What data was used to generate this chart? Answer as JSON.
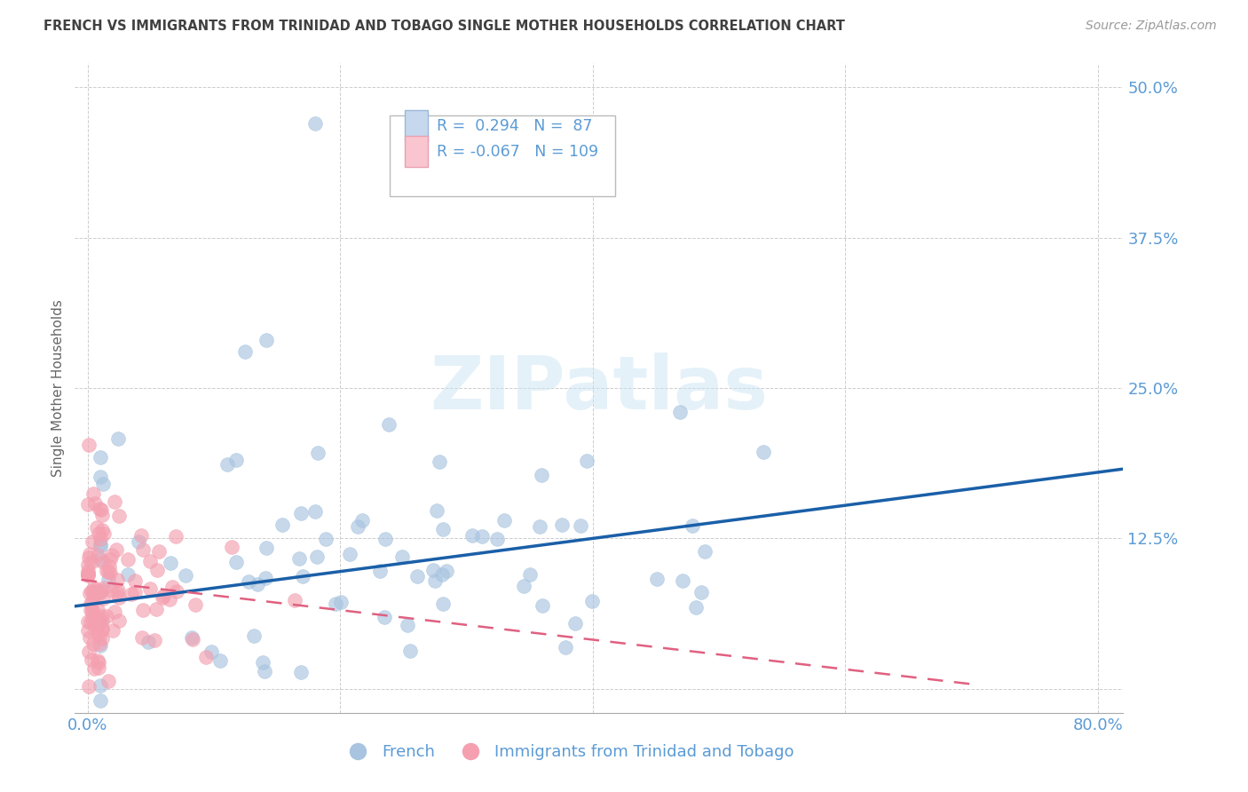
{
  "title": "FRENCH VS IMMIGRANTS FROM TRINIDAD AND TOBAGO SINGLE MOTHER HOUSEHOLDS CORRELATION CHART",
  "source": "Source: ZipAtlas.com",
  "ylabel": "Single Mother Households",
  "watermark": "ZIPatlas",
  "blue_R": 0.294,
  "blue_N": 87,
  "pink_R": -0.067,
  "pink_N": 109,
  "blue_color": "#a8c4e0",
  "pink_color": "#f4a0b0",
  "blue_line_color": "#1a5fa8",
  "pink_line_color": "#e06080",
  "axis_color": "#5b9bd5",
  "title_color": "#404040",
  "background_color": "#ffffff",
  "grid_color": "#c8c8c8",
  "xlim": [
    -0.01,
    0.82
  ],
  "ylim": [
    -0.02,
    0.52
  ],
  "yticks": [
    0.0,
    0.125,
    0.25,
    0.375,
    0.5
  ],
  "ytick_labels": [
    "",
    "12.5%",
    "25.0%",
    "37.5%",
    "50.0%"
  ],
  "xtick_labels": [
    "0.0%",
    "",
    "",
    "",
    "80.0%"
  ],
  "xticks": [
    0.0,
    0.2,
    0.4,
    0.6,
    0.8
  ],
  "legend_label_blue": "French",
  "legend_label_pink": "Immigrants from Trinidad and Tobago"
}
